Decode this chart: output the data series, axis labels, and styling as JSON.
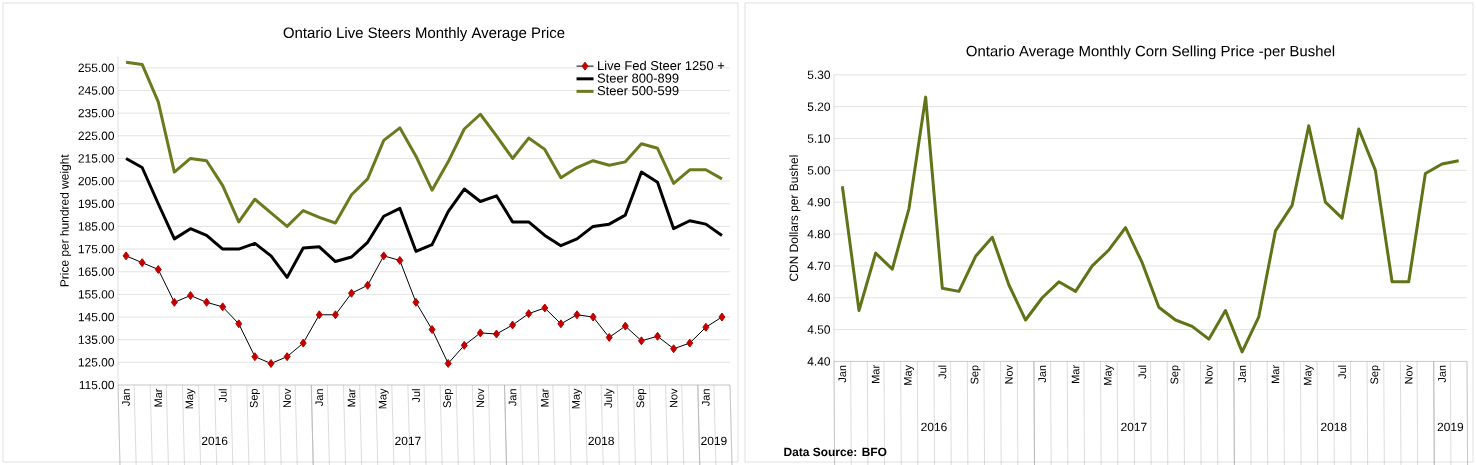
{
  "chart_data": [
    {
      "type": "line",
      "title": "Ontario Live Steers Monthly Average Price",
      "ylabel": "Price per hundred weight",
      "categories": [
        "Jan",
        null,
        "Mar",
        null,
        "May",
        null,
        "Jul",
        null,
        "Sep",
        null,
        "Nov",
        null,
        "Jan",
        null,
        "Mar",
        null,
        "May",
        null,
        "Jul",
        null,
        "Sep",
        null,
        "Nov",
        null,
        "Jan",
        null,
        "Mar",
        null,
        "May",
        null,
        "July",
        null,
        "Sep",
        null,
        "Nov",
        null,
        "Jan",
        null
      ],
      "series": [
        {
          "name": "Live Fed Steer 1250 +",
          "color": "#c00000",
          "marker": "diamond",
          "values": [
            172,
            169,
            166,
            151.5,
            154.5,
            151.5,
            149.5,
            142,
            127.5,
            124.5,
            127.5,
            133.5,
            146,
            146,
            155.5,
            159,
            172,
            170,
            151.5,
            139.5,
            124.5,
            132.5,
            138,
            137.5,
            141.5,
            146.5,
            149,
            142,
            146,
            145,
            136,
            141,
            134.5,
            136.5,
            131,
            133.5,
            140.5,
            145
          ]
        },
        {
          "name": "Steer 800-899",
          "color": "#000000",
          "values": [
            215,
            211,
            195,
            179.5,
            184,
            181,
            175,
            175,
            177.5,
            172,
            162.5,
            175.5,
            176,
            169.5,
            171.5,
            178,
            189.5,
            193,
            174,
            177,
            191.5,
            201.5,
            196,
            198.5,
            187,
            187,
            181,
            176.5,
            179.5,
            185,
            186,
            190,
            209,
            204.5,
            184,
            187.5,
            186,
            181
          ]
        },
        {
          "name": "Steer 500-599",
          "color": "#6b7a1e",
          "values": [
            257.5,
            256.5,
            240,
            209,
            215,
            214,
            203,
            187,
            197,
            191,
            185,
            192,
            189,
            186.5,
            199,
            206,
            223,
            228.5,
            216,
            201,
            213.5,
            228,
            234.5,
            225,
            215,
            224,
            219,
            206.5,
            211,
            214,
            212,
            213.5,
            221.5,
            219.5,
            204,
            210,
            210,
            206
          ]
        }
      ],
      "ylim": [
        115,
        260
      ],
      "yticks": [
        {
          "value": 115,
          "label": "115.00"
        },
        {
          "value": 125,
          "label": "125.00"
        },
        {
          "value": 135,
          "label": "135.00"
        },
        {
          "value": 145,
          "label": "145.00"
        },
        {
          "value": 155,
          "label": "155.00"
        },
        {
          "value": 165,
          "label": "165.00"
        },
        {
          "value": 175,
          "label": "175.00"
        },
        {
          "value": 185,
          "label": "185.00"
        },
        {
          "value": 195,
          "label": "195.00"
        },
        {
          "value": 205,
          "label": "205.00"
        },
        {
          "value": 215,
          "label": "215.00"
        },
        {
          "value": 225,
          "label": "225.00"
        },
        {
          "value": 235,
          "label": "235.00"
        },
        {
          "value": 245,
          "label": "245.00"
        },
        {
          "value": 255,
          "label": "255.00"
        }
      ],
      "grid": "y",
      "legend": "top right",
      "annotations": [
        "2016",
        "2017",
        "2018",
        "2019"
      ]
    },
    {
      "type": "line",
      "title": "Ontario Average Monthly Corn Selling Price -per Bushel",
      "ylabel": "CDN Dollars per Bushel",
      "categories": [
        "Jan",
        null,
        "Mar",
        null,
        "May",
        null,
        "Jul",
        null,
        "Sep",
        null,
        "Nov",
        null,
        "Jan",
        null,
        "Mar",
        null,
        "May",
        null,
        "Jul",
        null,
        "Sep",
        null,
        "Nov",
        null,
        "Jan",
        null,
        "Mar",
        null,
        "May",
        null,
        "Jul",
        null,
        "Sep",
        null,
        "Nov",
        null,
        "Jan",
        null
      ],
      "series": [
        {
          "color": "#5f7317",
          "values": [
            4.95,
            4.56,
            4.74,
            4.69,
            4.88,
            5.23,
            4.63,
            4.62,
            4.73,
            4.79,
            4.64,
            4.53,
            4.6,
            4.65,
            4.62,
            4.7,
            4.75,
            4.82,
            4.71,
            4.57,
            4.53,
            4.51,
            4.47,
            4.56,
            4.43,
            4.54,
            4.81,
            4.89,
            5.14,
            4.9,
            4.85,
            5.13,
            5.0,
            4.65,
            4.65,
            4.99,
            5.02,
            5.03
          ]
        }
      ],
      "ylim": [
        4.4,
        5.3
      ],
      "yticks": [
        {
          "value": 4.4,
          "label": "4.40"
        },
        {
          "value": 4.5,
          "label": "4.50"
        },
        {
          "value": 4.6,
          "label": "4.60"
        },
        {
          "value": 4.7,
          "label": "4.70"
        },
        {
          "value": 4.8,
          "label": "4.80"
        },
        {
          "value": 4.9,
          "label": "4.90"
        },
        {
          "value": 5.0,
          "label": "5.00"
        },
        {
          "value": 5.1,
          "label": "5.10"
        },
        {
          "value": 5.2,
          "label": "5.20"
        },
        {
          "value": 5.3,
          "label": "5.30"
        }
      ],
      "grid": "y",
      "annotations": [
        "2016",
        "2017",
        "2018",
        "2019",
        "**Data Source: BFO**"
      ]
    }
  ]
}
